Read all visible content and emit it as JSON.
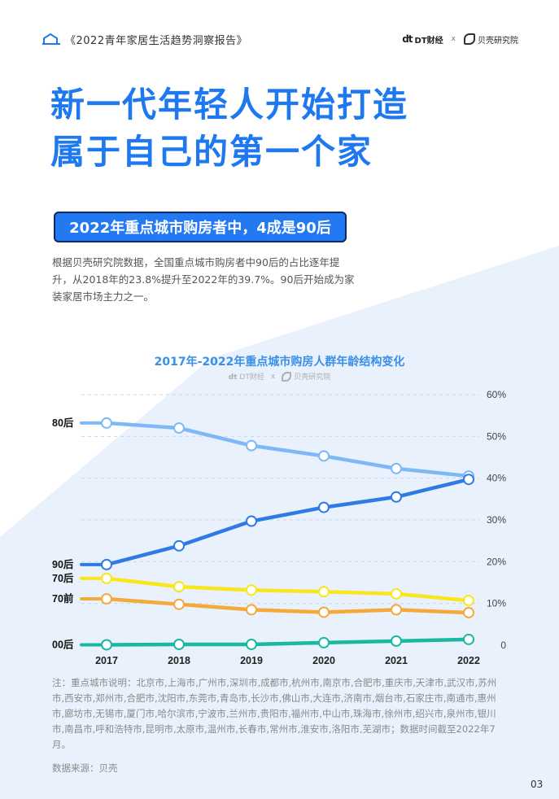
{
  "header": {
    "report_title": "《2022青年家居生活趋势洞察报告》",
    "logo_dt": "DT财经",
    "logo_sep": "x",
    "logo_bk": "贝壳研究院",
    "accent": "#1e78f0"
  },
  "headline": {
    "line1": "新一代年轻人开始打造",
    "line2": "属于自己的第一个家"
  },
  "subtitle": "2022年重点城市购房者中，4成是90后",
  "description": "根据贝壳研究院数据，全国重点城市购房者中90后的占比逐年提升，从2018年的23.8%提升至2022年的39.7%。90后开始成为家装家居市场主力之一。",
  "chart_data": {
    "type": "line",
    "title": "2017年-2022年重点城市购房人群年龄结构变化",
    "x": [
      "2017",
      "2018",
      "2019",
      "2020",
      "2021",
      "2022"
    ],
    "ylim": [
      0,
      60
    ],
    "y_ticks": [
      "0",
      "10%",
      "20%",
      "30%",
      "40%",
      "50%",
      "60%"
    ],
    "y_axis_position": "right",
    "grid": true,
    "series": [
      {
        "name": "80后",
        "color": "#7eb8f5",
        "values": [
          53.2,
          52.0,
          47.8,
          45.3,
          42.3,
          40.5
        ]
      },
      {
        "name": "90后",
        "color": "#2f7ae5",
        "values": [
          19.3,
          23.8,
          29.7,
          33.0,
          35.5,
          39.7
        ]
      },
      {
        "name": "70后",
        "color": "#f8e71c",
        "values": [
          16.0,
          14.0,
          13.2,
          12.8,
          12.3,
          10.7
        ]
      },
      {
        "name": "70前",
        "color": "#f5a93b",
        "values": [
          11.1,
          9.8,
          8.5,
          7.9,
          8.5,
          7.8
        ]
      },
      {
        "name": "00后",
        "color": "#1ab8a0",
        "values": [
          0.1,
          0.2,
          0.2,
          0.6,
          1.0,
          1.4
        ]
      }
    ]
  },
  "note": "注：重点城市说明：北京市,上海市,广州市,深圳市,成都市,杭州市,南京市,合肥市,重庆市,天津市,武汉市,苏州市,西安市,郑州市,合肥市,沈阳市,东莞市,青岛市,长沙市,佛山市,大连市,济南市,烟台市,石家庄市,南通市,惠州市,廊坊市,无锡市,厦门市,哈尔滨市,宁波市,兰州市,贵阳市,福州市,中山市,珠海市,徐州市,绍兴市,泉州市,银川市,南昌市,呼和浩特市,昆明市,太原市,温州市,长春市,常州市,淮安市,洛阳市,芜湖市；数据时间截至2022年7月。",
  "source": "数据来源：贝壳",
  "page_number": "03",
  "colors": {
    "background_shape": "#e8f1fc",
    "subtitle_bg": "#2379f2",
    "subtitle_border": "#0b2a63"
  }
}
